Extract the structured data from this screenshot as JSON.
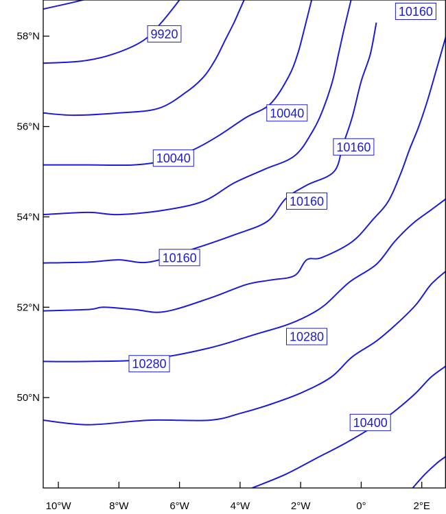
{
  "chart_data": {
    "type": "contour",
    "lon_range": [
      -10.5,
      2.8
    ],
    "lat_range": [
      48.0,
      58.8
    ],
    "colors": {
      "contour": "#1a1adb",
      "frame": "#000000",
      "label_border": "#1a1adb",
      "label_bg": "#ffffff"
    },
    "x_ticks": [
      {
        "value": -10,
        "label": "10°W"
      },
      {
        "value": -8,
        "label": "8°W"
      },
      {
        "value": -6,
        "label": "6°W"
      },
      {
        "value": -4,
        "label": "4°W"
      },
      {
        "value": -2,
        "label": "2°W"
      },
      {
        "value": 0,
        "label": "0°"
      },
      {
        "value": 2,
        "label": "2°E"
      }
    ],
    "y_ticks": [
      {
        "value": 50,
        "label": "50°N"
      },
      {
        "value": 52,
        "label": "52°N"
      },
      {
        "value": 54,
        "label": "54°N"
      },
      {
        "value": 56,
        "label": "56°N"
      },
      {
        "value": 58,
        "label": "58°N"
      }
    ],
    "contours": [
      {
        "points": [
          [
            -10.5,
            58.6
          ],
          [
            -9.5,
            58.75
          ],
          [
            -8.6,
            58.9
          ]
        ]
      },
      {
        "points": [
          [
            -10.5,
            57.4
          ],
          [
            -9.2,
            57.45
          ],
          [
            -8.2,
            57.6
          ],
          [
            -7.2,
            57.9
          ],
          [
            -6.6,
            58.3
          ],
          [
            -6.0,
            58.8
          ]
        ]
      },
      {
        "points": [
          [
            -10.5,
            56.3
          ],
          [
            -9.5,
            56.25
          ],
          [
            -8.0,
            56.3
          ],
          [
            -6.7,
            56.4
          ],
          [
            -5.8,
            56.75
          ],
          [
            -5.2,
            57.1
          ],
          [
            -4.8,
            57.5
          ],
          [
            -4.5,
            57.9
          ],
          [
            -4.2,
            58.3
          ],
          [
            -4.0,
            58.6
          ],
          [
            -3.8,
            58.9
          ]
        ]
      },
      {
        "points": [
          [
            -10.5,
            55.15
          ],
          [
            -9.0,
            55.15
          ],
          [
            -7.5,
            55.15
          ],
          [
            -6.5,
            55.25
          ],
          [
            -5.5,
            55.5
          ],
          [
            -4.7,
            55.8
          ],
          [
            -3.8,
            56.2
          ],
          [
            -3.0,
            56.5
          ],
          [
            -2.4,
            57.1
          ],
          [
            -2.1,
            57.6
          ],
          [
            -1.9,
            58.1
          ],
          [
            -1.75,
            58.5
          ],
          [
            -1.6,
            58.9
          ]
        ]
      },
      {
        "points": [
          [
            -10.5,
            54.05
          ],
          [
            -9.0,
            54.1
          ],
          [
            -8.0,
            54.05
          ],
          [
            -6.5,
            54.15
          ],
          [
            -5.2,
            54.35
          ],
          [
            -4.2,
            54.75
          ],
          [
            -3.2,
            55.05
          ],
          [
            -2.2,
            55.35
          ],
          [
            -1.6,
            55.9
          ],
          [
            -1.25,
            56.4
          ],
          [
            -0.95,
            57.0
          ],
          [
            -0.75,
            57.6
          ],
          [
            -0.55,
            58.2
          ],
          [
            -0.3,
            58.9
          ]
        ]
      },
      {
        "points": [
          [
            -10.5,
            52.98
          ],
          [
            -9.0,
            53.0
          ],
          [
            -8.0,
            53.05
          ],
          [
            -7.0,
            53.0
          ],
          [
            -5.5,
            53.3
          ],
          [
            -4.2,
            53.6
          ],
          [
            -3.1,
            53.9
          ],
          [
            -2.5,
            54.4
          ],
          [
            -1.8,
            54.7
          ],
          [
            -0.9,
            55.0
          ],
          [
            -0.6,
            55.6
          ],
          [
            -0.3,
            56.2
          ],
          [
            0.0,
            57.0
          ],
          [
            0.3,
            57.6
          ],
          [
            0.5,
            58.3
          ]
        ]
      },
      {
        "points": [
          [
            -10.5,
            51.92
          ],
          [
            -9.0,
            51.95
          ],
          [
            -8.5,
            52.0
          ],
          [
            -7.5,
            51.95
          ],
          [
            -6.5,
            51.9
          ],
          [
            -5.0,
            52.2
          ],
          [
            -3.8,
            52.5
          ],
          [
            -3.0,
            52.6
          ],
          [
            -2.2,
            52.7
          ],
          [
            -1.8,
            53.05
          ],
          [
            -1.3,
            53.1
          ],
          [
            -0.3,
            53.45
          ],
          [
            0.4,
            53.95
          ],
          [
            0.9,
            54.35
          ],
          [
            1.3,
            54.95
          ],
          [
            1.6,
            55.5
          ],
          [
            1.9,
            56.0
          ],
          [
            2.2,
            56.6
          ],
          [
            2.5,
            57.3
          ],
          [
            2.8,
            58.0
          ]
        ]
      },
      {
        "points": [
          [
            -10.5,
            50.8
          ],
          [
            -9.0,
            50.8
          ],
          [
            -7.0,
            50.85
          ],
          [
            -5.0,
            51.1
          ],
          [
            -3.5,
            51.4
          ],
          [
            -2.5,
            51.6
          ],
          [
            -1.8,
            51.8
          ],
          [
            -1.2,
            52.05
          ],
          [
            -0.4,
            52.55
          ],
          [
            0.5,
            52.95
          ],
          [
            1.1,
            53.45
          ],
          [
            1.7,
            53.85
          ],
          [
            2.3,
            54.15
          ],
          [
            2.8,
            54.4
          ]
        ]
      },
      {
        "points": [
          [
            -10.5,
            49.5
          ],
          [
            -9.0,
            49.4
          ],
          [
            -7.0,
            49.5
          ],
          [
            -5.0,
            49.5
          ],
          [
            -4.0,
            49.65
          ],
          [
            -3.0,
            49.85
          ],
          [
            -2.0,
            50.1
          ],
          [
            -1.0,
            50.45
          ],
          [
            -0.3,
            50.9
          ],
          [
            0.5,
            51.25
          ],
          [
            1.2,
            51.65
          ],
          [
            1.8,
            52.05
          ],
          [
            2.3,
            52.5
          ],
          [
            2.8,
            52.8
          ]
        ]
      },
      {
        "points": [
          [
            -3.6,
            48.0
          ],
          [
            -2.5,
            48.3
          ],
          [
            -1.5,
            48.65
          ],
          [
            -0.5,
            49.0
          ],
          [
            0.5,
            49.4
          ],
          [
            1.2,
            49.75
          ],
          [
            1.8,
            50.1
          ],
          [
            2.3,
            50.45
          ],
          [
            2.8,
            50.7
          ]
        ]
      },
      {
        "points": [
          [
            1.7,
            48.0
          ],
          [
            2.1,
            48.3
          ],
          [
            2.5,
            48.55
          ],
          [
            2.8,
            48.7
          ]
        ]
      }
    ],
    "labels": [
      {
        "text": "9920",
        "lon": -6.5,
        "lat": 58.05
      },
      {
        "text": "10040",
        "lon": -2.45,
        "lat": 56.3
      },
      {
        "text": "10040",
        "lon": -6.2,
        "lat": 55.3
      },
      {
        "text": "10160",
        "lon": 1.8,
        "lat": 58.55
      },
      {
        "text": "10160",
        "lon": -0.25,
        "lat": 55.55
      },
      {
        "text": "10160",
        "lon": -1.8,
        "lat": 54.35
      },
      {
        "text": "10160",
        "lon": -6.0,
        "lat": 53.1
      },
      {
        "text": "10280",
        "lon": -1.8,
        "lat": 51.35
      },
      {
        "text": "10280",
        "lon": -7.0,
        "lat": 50.75
      },
      {
        "text": "10400",
        "lon": 0.3,
        "lat": 49.45
      }
    ]
  }
}
